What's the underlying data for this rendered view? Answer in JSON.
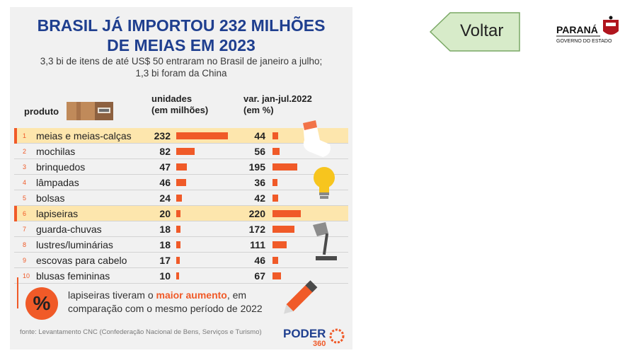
{
  "infographic": {
    "title_line1": "BRASIL JÁ IMPORTOU 232 MILHÕES",
    "title_line2": "DE MEIAS EM 2023",
    "subtitle_line1": "3,3 bi de itens de até US$ 50 entraram no Brasil de janeiro a julho;",
    "subtitle_line2": "1,3 bi foram da China",
    "col_produto": "produto",
    "col_units_line1": "unidades",
    "col_units_line2": "(em milhões)",
    "col_var_line1": "var. jan-jul.2022",
    "col_var_line2": "(em %)",
    "note_line1_pre": "lapiseiras tiveram o ",
    "note_line1_hi": "maior aumento",
    "note_line1_post": ", em",
    "note_line2": "comparação com o mesmo período de 2022",
    "percent_symbol": "%",
    "source": "fonte: Levantamento CNC (Confederação Nacional de Bens, Serviços e Turismo)",
    "brand": "PODER",
    "brand_sub": "360",
    "accent": "#f05a28",
    "highlight_row_color": "#fde6ad",
    "title_color": "#1f3f8f"
  },
  "chart_data": {
    "type": "table",
    "columns": [
      "produto",
      "unidades (em milhões)",
      "var. jan-jul.2022 (em %)"
    ],
    "rows": [
      {
        "rank": "1",
        "product": "meias e meias-calças",
        "units": "232",
        "var": "44",
        "highlight": true
      },
      {
        "rank": "2",
        "product": "mochilas",
        "units": "82",
        "var": "56",
        "highlight": false
      },
      {
        "rank": "3",
        "product": "brinquedos",
        "units": "47",
        "var": "195",
        "highlight": false
      },
      {
        "rank": "4",
        "product": "lâmpadas",
        "units": "46",
        "var": "36",
        "highlight": false
      },
      {
        "rank": "5",
        "product": "bolsas",
        "units": "24",
        "var": "42",
        "highlight": false
      },
      {
        "rank": "6",
        "product": "lapiseiras",
        "units": "20",
        "var": "220",
        "highlight": true
      },
      {
        "rank": "7",
        "product": "guarda-chuvas",
        "units": "18",
        "var": "172",
        "highlight": false
      },
      {
        "rank": "8",
        "product": "lustres/luminárias",
        "units": "18",
        "var": "111",
        "highlight": false
      },
      {
        "rank": "9",
        "product": "escovas para cabelo",
        "units": "17",
        "var": "46",
        "highlight": false
      },
      {
        "rank": "10",
        "product": "blusas femininas",
        "units": "10",
        "var": "67",
        "highlight": false
      }
    ]
  },
  "nav": {
    "back_label": "Voltar",
    "back_color": "#d7ebc9"
  },
  "logo": {
    "name": "PARANÁ",
    "subtitle": "GOVERNO DO ESTADO"
  }
}
